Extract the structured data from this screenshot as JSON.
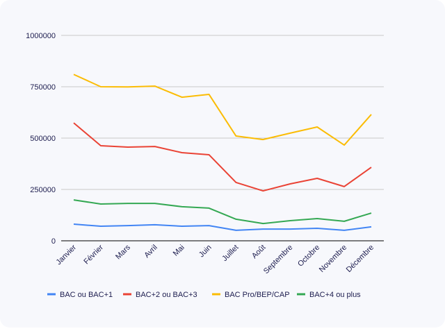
{
  "chart_data": {
    "type": "line",
    "title": "",
    "xlabel": "",
    "ylabel": "",
    "ylim": [
      0,
      1000000
    ],
    "yticks": [
      "0",
      "250000",
      "500000",
      "750000",
      "1000000"
    ],
    "ytick_values": [
      0,
      250000,
      500000,
      750000,
      1000000
    ],
    "grid": true,
    "legend_position": "bottom",
    "categories": [
      "Janvier",
      "Février",
      "Mars",
      "Avril",
      "Mai",
      "Juin",
      "Juillet",
      "Août",
      "Septembre",
      "Octobre",
      "Novembre",
      "Décembre"
    ],
    "series": [
      {
        "name": "BAC ou BAC+1",
        "color": "#4285f4",
        "values": [
          81000,
          71000,
          74000,
          78000,
          71000,
          74000,
          51000,
          57000,
          57000,
          61000,
          51000,
          68000
        ]
      },
      {
        "name": "BAC+2 ou BAC+3",
        "color": "#ea4335",
        "values": [
          574000,
          463000,
          456000,
          459000,
          429000,
          419000,
          284000,
          243000,
          277000,
          304000,
          264000,
          358000
        ]
      },
      {
        "name": "BAC Pro/BEP/CAP",
        "color": "#fbbc04",
        "values": [
          810000,
          750000,
          749000,
          753000,
          699000,
          713000,
          510000,
          493000,
          524000,
          554000,
          466000,
          615000
        ]
      },
      {
        "name": "BAC+4 ou plus",
        "color": "#34a853",
        "values": [
          199000,
          179000,
          182000,
          182000,
          166000,
          159000,
          105000,
          84000,
          98000,
          108000,
          95000,
          135000
        ]
      }
    ]
  }
}
